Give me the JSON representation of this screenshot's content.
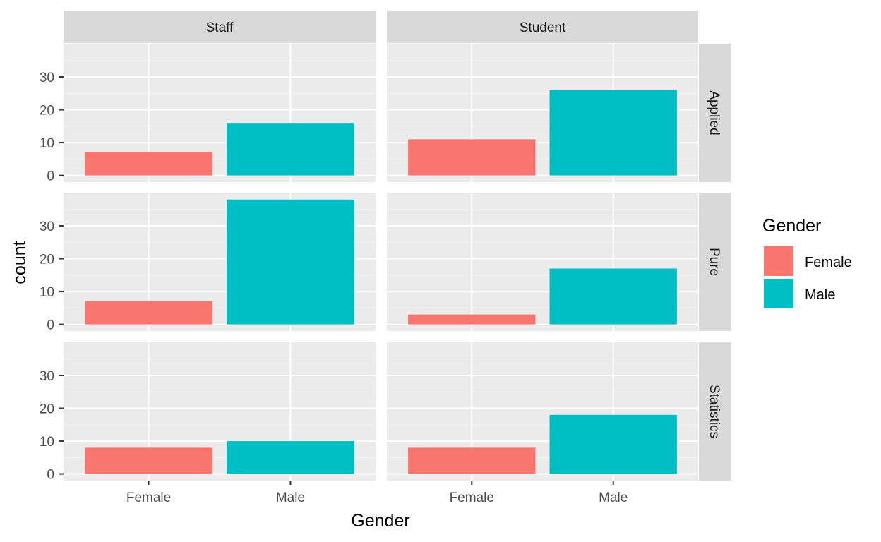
{
  "chart_data": {
    "type": "bar",
    "xlabel": "Gender",
    "ylabel": "count",
    "categories": [
      "Female",
      "Male"
    ],
    "ylim": [
      0,
      38
    ],
    "yticks": [
      0,
      10,
      20,
      30
    ],
    "grid": true,
    "legend": {
      "title": "Gender",
      "position": "right",
      "entries": [
        {
          "label": "Female",
          "color": "#F8766D"
        },
        {
          "label": "Male",
          "color": "#00BFC4"
        }
      ]
    },
    "facet_columns": [
      "Staff",
      "Student"
    ],
    "facet_rows": [
      "Applied",
      "Pure",
      "Statistics"
    ],
    "panels": [
      {
        "row": "Applied",
        "column": "Staff",
        "values": [
          7,
          16
        ]
      },
      {
        "row": "Applied",
        "column": "Student",
        "values": [
          11,
          26
        ]
      },
      {
        "row": "Pure",
        "column": "Staff",
        "values": [
          7,
          38
        ]
      },
      {
        "row": "Pure",
        "column": "Student",
        "values": [
          3,
          17
        ]
      },
      {
        "row": "Statistics",
        "column": "Staff",
        "values": [
          8,
          10
        ]
      },
      {
        "row": "Statistics",
        "column": "Student",
        "values": [
          8,
          18
        ]
      }
    ]
  }
}
